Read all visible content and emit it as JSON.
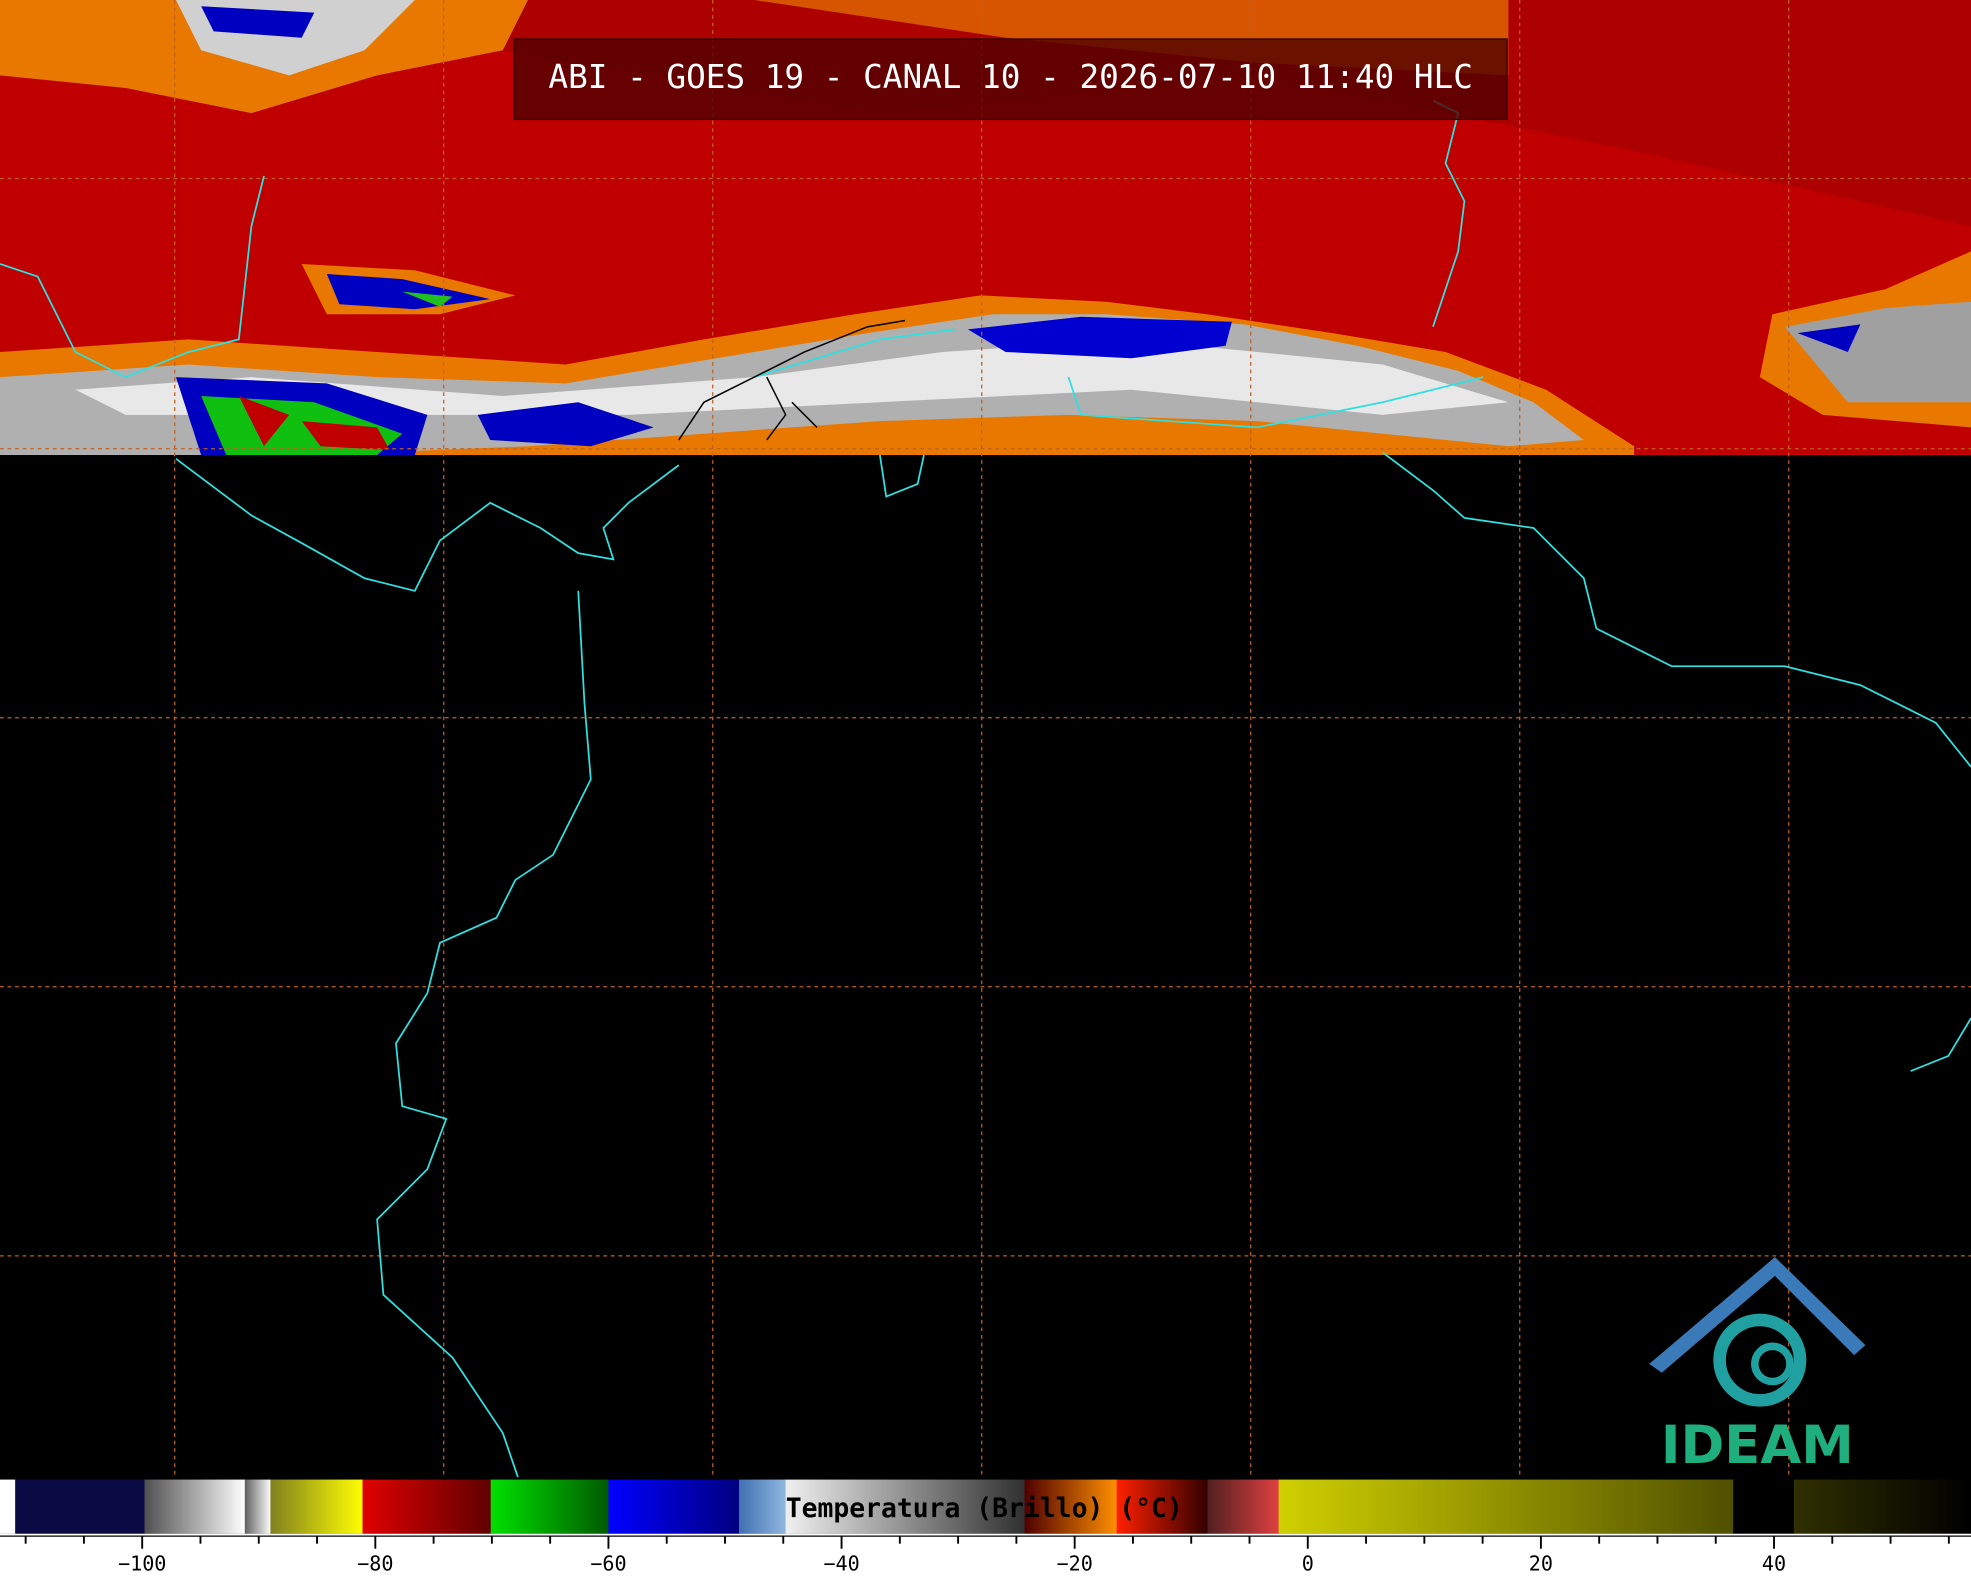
{
  "header": {
    "title": "ABI - GOES 19 - CANAL 10 - 2026-07-10 11:40 HLC"
  },
  "logo": {
    "text": "IDEAM"
  },
  "colorbar": {
    "label": "Temperatura (Brillo) (°C)",
    "range": [
      -112.2,
      56.9
    ],
    "ticks": [
      {
        "value": -100,
        "label": "−100"
      },
      {
        "value": -80,
        "label": "−80"
      },
      {
        "value": -60,
        "label": "−60"
      },
      {
        "value": -40,
        "label": "−40"
      },
      {
        "value": -20,
        "label": "−20"
      },
      0,
      20,
      40
    ],
    "minor_ticks": [
      -110,
      -105,
      -95,
      -90,
      -85,
      -75,
      -70,
      -65,
      -55,
      -50,
      -45,
      -35,
      -30,
      -25,
      -15,
      -10,
      -5,
      5,
      10,
      15,
      25,
      30,
      35,
      45,
      50,
      55
    ],
    "segments": [
      {
        "from": -112.2,
        "to": -110.9,
        "colors": [
          "#ffffff",
          "#ffffff"
        ]
      },
      {
        "from": -110.9,
        "to": -99.8,
        "colors": [
          "#0a0a45",
          "#0a0a45"
        ]
      },
      {
        "from": -99.8,
        "to": -91.2,
        "colors": [
          "#505050",
          "#ffffff"
        ]
      },
      {
        "from": -91.2,
        "to": -89,
        "colors": [
          "#606060",
          "#ffffff"
        ]
      },
      {
        "from": -89,
        "to": -81.1,
        "colors": [
          "#808020",
          "#ffff00"
        ]
      },
      {
        "from": -81.1,
        "to": -70.1,
        "colors": [
          "#e00000",
          "#600000"
        ]
      },
      {
        "from": -70.1,
        "to": -60,
        "colors": [
          "#00e000",
          "#005a00"
        ]
      },
      {
        "from": -60,
        "to": -48.8,
        "colors": [
          "#0000ff",
          "#000080"
        ]
      },
      {
        "from": -48.8,
        "to": -44.8,
        "colors": [
          "#4070b0",
          "#90b8e0"
        ]
      },
      {
        "from": -44.8,
        "to": -24.3,
        "colors": [
          "#f0f0f0",
          "#303030"
        ]
      },
      {
        "from": -24.3,
        "to": -16.4,
        "colors": [
          "#500000",
          "#ff9000"
        ]
      },
      {
        "from": -16.4,
        "to": -8.6,
        "colors": [
          "#ff2000",
          "#300000"
        ]
      },
      {
        "from": -8.6,
        "to": -2.5,
        "colors": [
          "#502020",
          "#e04040"
        ]
      },
      {
        "from": -2.5,
        "to": 36.5,
        "colors": [
          "#d0d000",
          "#505000"
        ]
      },
      {
        "from": 36.5,
        "to": 41.7,
        "colors": [
          "#000000",
          "#000000"
        ]
      },
      {
        "from": 41.7,
        "to": 56.9,
        "colors": [
          "#303000",
          "#000000"
        ]
      }
    ]
  }
}
